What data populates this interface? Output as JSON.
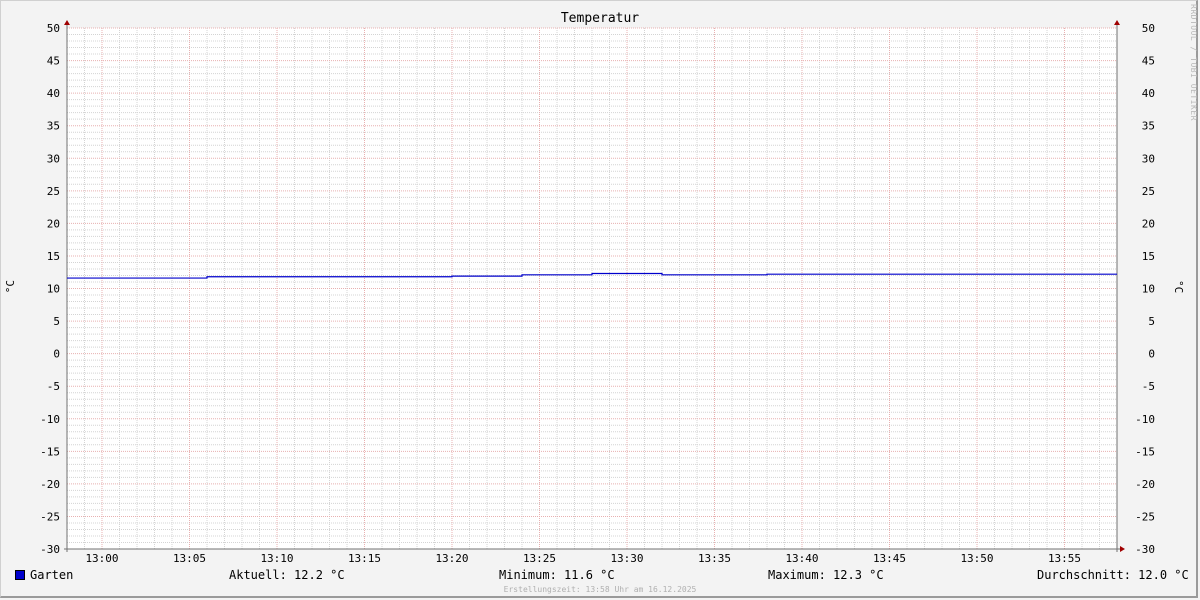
{
  "watermark": "RRDTOOL / TOBI OETIKER",
  "legend": {
    "series": "Garten",
    "current": "Aktuell: 12.2 °C",
    "minimum": "Minimum: 11.6 °C",
    "maximum": "Maximum: 12.3 °C",
    "average": "Durchschnitt: 12.0 °C"
  },
  "footer": "Erstellungszeit: 13:58 Uhr am 16.12.2025",
  "chart_data": {
    "type": "line",
    "title": "Temperatur",
    "ylabel": "°C",
    "ylabel_right": "°C",
    "ylim": [
      -30,
      50
    ],
    "yticks": [
      50,
      45,
      40,
      35,
      30,
      25,
      20,
      15,
      10,
      5,
      0,
      -5,
      -10,
      -15,
      -20,
      -25,
      -30
    ],
    "xlim": [
      "12:58",
      "13:58"
    ],
    "xticks": [
      "13:00",
      "13:05",
      "13:10",
      "13:15",
      "13:20",
      "13:25",
      "13:30",
      "13:35",
      "13:40",
      "13:45",
      "13:50",
      "13:55"
    ],
    "grid": true,
    "legend_position": "bottom-left",
    "series": [
      {
        "name": "Garten",
        "color": "#0000cc",
        "step": true,
        "points": [
          {
            "x": "12:58",
            "y": 11.6
          },
          {
            "x": "13:06",
            "y": 11.8
          },
          {
            "x": "13:20",
            "y": 11.9
          },
          {
            "x": "13:24",
            "y": 12.1
          },
          {
            "x": "13:28",
            "y": 12.3
          },
          {
            "x": "13:32",
            "y": 12.1
          },
          {
            "x": "13:38",
            "y": 12.2
          },
          {
            "x": "13:58",
            "y": 12.2
          }
        ]
      }
    ]
  }
}
